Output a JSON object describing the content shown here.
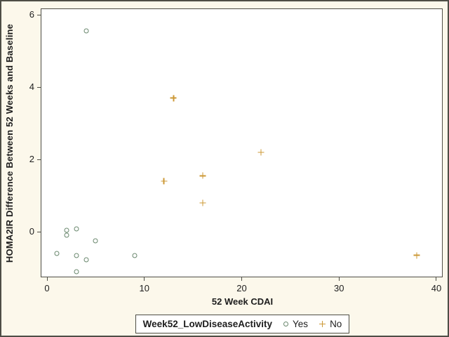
{
  "colors": {
    "background": "#FCF8EB",
    "frame": "#4E4E46",
    "plot_background": "#FFFFFF",
    "text": "#1D1D1D",
    "series_yes": "#69876D",
    "series_no": "#CC9836"
  },
  "chart_data": {
    "type": "scatter",
    "title": "",
    "xlabel": "52 Week CDAI",
    "ylabel": "HOMA2IR Difference Between 52 Weeks and Baseline",
    "xlim": [
      -0.58,
      40.58
    ],
    "ylim": [
      -1.24,
      6.16
    ],
    "x_ticks": [
      0,
      10,
      20,
      30,
      40
    ],
    "y_ticks": [
      0,
      2,
      4,
      6
    ],
    "grid": false,
    "legend_position": "bottom",
    "series": [
      {
        "name": "Yes",
        "marker": "circle",
        "color": "#69876D",
        "points": [
          [
            4,
            5.55
          ],
          [
            2,
            0.05
          ],
          [
            3,
            0.08
          ],
          [
            2,
            -0.1
          ],
          [
            5,
            -0.25
          ],
          [
            1,
            -0.6
          ],
          [
            3,
            -0.65
          ],
          [
            4,
            -0.77
          ],
          [
            9,
            -0.65
          ],
          [
            3,
            -1.1
          ]
        ]
      },
      {
        "name": "No",
        "marker": "plus",
        "color": "#CC9836",
        "points": [
          [
            13,
            3.7
          ],
          [
            12,
            1.4
          ],
          [
            16,
            1.55
          ],
          [
            16,
            0.8
          ],
          [
            22,
            2.2
          ],
          [
            38,
            -0.65
          ]
        ]
      }
    ],
    "legend": {
      "title": "Week52_LowDiseaseActivity"
    }
  }
}
